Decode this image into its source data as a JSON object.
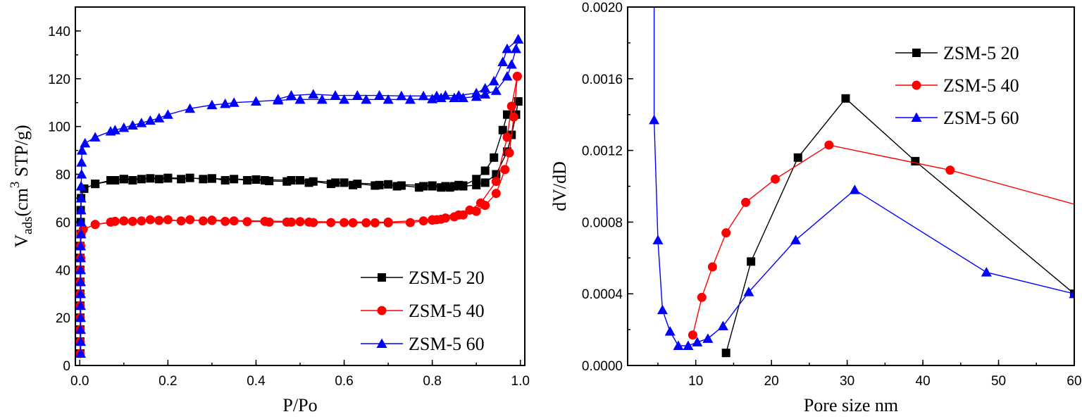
{
  "chart_data": [
    {
      "type": "line",
      "xlabel": "P/Po",
      "ylabel": {
        "main": "V",
        "sub": "ads",
        "pre_sup": "(cm",
        "sup": "3",
        "post_sup": " STP/g)"
      },
      "xlim": [
        -0.01,
        1.01
      ],
      "ylim": [
        0,
        150
      ],
      "xticks": [
        "0.0",
        "0.2",
        "0.4",
        "0.6",
        "0.8",
        "1.0"
      ],
      "yticks": [
        "0",
        "20",
        "40",
        "60",
        "80",
        "100",
        "120",
        "140"
      ],
      "grid": false,
      "legend_position": "bottom-right",
      "series": [
        {
          "name": "ZSM-5 20",
          "color": "#000000",
          "marker": "square",
          "adsorption": [
            [
              0.001,
              5
            ],
            [
              0.001,
              10
            ],
            [
              0.001,
              15
            ],
            [
              0.001,
              20
            ],
            [
              0.001,
              25
            ],
            [
              0.001,
              30
            ],
            [
              0.001,
              35
            ],
            [
              0.001,
              40
            ],
            [
              0.001,
              45
            ],
            [
              0.001,
              50
            ],
            [
              0.002,
              55
            ],
            [
              0.002,
              60
            ],
            [
              0.002,
              65
            ],
            [
              0.003,
              70
            ],
            [
              0.01,
              74
            ],
            [
              0.035,
              76
            ],
            [
              0.07,
              77.5
            ],
            [
              0.08,
              77.5
            ],
            [
              0.1,
              78
            ],
            [
              0.12,
              77.5
            ],
            [
              0.14,
              78
            ],
            [
              0.16,
              78.3
            ],
            [
              0.18,
              78
            ],
            [
              0.2,
              78.3
            ],
            [
              0.23,
              78
            ],
            [
              0.25,
              78.5
            ],
            [
              0.28,
              78
            ],
            [
              0.3,
              78.3
            ],
            [
              0.33,
              77.5
            ],
            [
              0.35,
              78
            ],
            [
              0.38,
              77.5
            ],
            [
              0.42,
              77.5
            ],
            [
              0.43,
              77.2
            ],
            [
              0.47,
              77
            ],
            [
              0.48,
              77.5
            ],
            [
              0.52,
              76.5
            ],
            [
              0.53,
              77
            ],
            [
              0.57,
              76
            ],
            [
              0.58,
              76.5
            ],
            [
              0.62,
              75.5
            ],
            [
              0.63,
              76
            ],
            [
              0.67,
              75.3
            ],
            [
              0.68,
              75.5
            ],
            [
              0.72,
              75
            ],
            [
              0.73,
              75.3
            ],
            [
              0.77,
              74.5
            ],
            [
              0.78,
              75
            ],
            [
              0.8,
              75
            ],
            [
              0.82,
              74.5
            ],
            [
              0.83,
              75
            ],
            [
              0.84,
              74.5
            ],
            [
              0.85,
              75
            ],
            [
              0.86,
              75.5
            ],
            [
              0.87,
              75
            ],
            [
              0.9,
              75.5
            ],
            [
              0.92,
              76.5
            ],
            [
              0.945,
              80
            ],
            [
              0.97,
              89.5
            ],
            [
              0.98,
              96.5
            ],
            [
              0.99,
              105
            ],
            [
              0.995,
              110.5
            ]
          ],
          "desorption": [
            [
              0.995,
              110.5
            ],
            [
              0.97,
              105
            ],
            [
              0.96,
              98.5
            ],
            [
              0.94,
              87
            ],
            [
              0.92,
              81.5
            ],
            [
              0.9,
              78
            ],
            [
              0.87,
              75.3
            ],
            [
              0.8,
              75.3
            ],
            [
              0.7,
              75.8
            ],
            [
              0.6,
              76.5
            ],
            [
              0.5,
              77.5
            ],
            [
              0.4,
              77.8
            ],
            [
              0.3,
              78.2
            ],
            [
              0.2,
              78.5
            ],
            [
              0.1,
              78
            ],
            [
              0.035,
              76
            ]
          ]
        },
        {
          "name": "ZSM-5 40",
          "color": "#ff0000",
          "marker": "circle",
          "adsorption": [
            [
              0.001,
              5
            ],
            [
              0.001,
              10
            ],
            [
              0.001,
              15
            ],
            [
              0.001,
              20
            ],
            [
              0.001,
              25
            ],
            [
              0.001,
              30
            ],
            [
              0.001,
              35
            ],
            [
              0.001,
              40
            ],
            [
              0.002,
              45
            ],
            [
              0.002,
              50
            ],
            [
              0.003,
              55
            ],
            [
              0.008,
              57
            ],
            [
              0.035,
              59
            ],
            [
              0.07,
              60
            ],
            [
              0.08,
              60.3
            ],
            [
              0.1,
              60.5
            ],
            [
              0.12,
              60.3
            ],
            [
              0.14,
              60.5
            ],
            [
              0.16,
              61
            ],
            [
              0.18,
              60.7
            ],
            [
              0.2,
              61
            ],
            [
              0.23,
              60.5
            ],
            [
              0.25,
              61
            ],
            [
              0.28,
              60.5
            ],
            [
              0.3,
              60.7
            ],
            [
              0.33,
              60.3
            ],
            [
              0.35,
              60.5
            ],
            [
              0.38,
              60.2
            ],
            [
              0.42,
              60.3
            ],
            [
              0.43,
              60
            ],
            [
              0.47,
              60
            ],
            [
              0.48,
              60
            ],
            [
              0.52,
              60
            ],
            [
              0.53,
              59.8
            ],
            [
              0.57,
              59.8
            ],
            [
              0.6,
              59.8
            ],
            [
              0.62,
              59.7
            ],
            [
              0.65,
              59.7
            ],
            [
              0.67,
              59.7
            ],
            [
              0.7,
              59.7
            ],
            [
              0.75,
              59.8
            ],
            [
              0.78,
              60.5
            ],
            [
              0.8,
              60.8
            ],
            [
              0.81,
              61
            ],
            [
              0.82,
              61.2
            ],
            [
              0.83,
              61.7
            ],
            [
              0.85,
              62.2
            ],
            [
              0.86,
              63
            ],
            [
              0.87,
              63
            ],
            [
              0.9,
              64.5
            ],
            [
              0.92,
              67
            ],
            [
              0.945,
              72
            ],
            [
              0.965,
              82
            ],
            [
              0.975,
              89
            ],
            [
              0.985,
              104
            ],
            [
              0.993,
              121
            ]
          ],
          "desorption": [
            [
              0.993,
              121
            ],
            [
              0.98,
              108.5
            ],
            [
              0.97,
              95.5
            ],
            [
              0.945,
              77
            ],
            [
              0.91,
              68
            ],
            [
              0.885,
              65
            ],
            [
              0.8,
              61
            ],
            [
              0.7,
              60
            ],
            [
              0.5,
              60.2
            ],
            [
              0.3,
              60.8
            ],
            [
              0.1,
              60.5
            ],
            [
              0.035,
              59
            ]
          ]
        },
        {
          "name": "ZSM-5 60",
          "color": "#0000ff",
          "marker": "triangle",
          "adsorption": [
            [
              0.002,
              5
            ],
            [
              0.002,
              10
            ],
            [
              0.002,
              15
            ],
            [
              0.002,
              20
            ],
            [
              0.002,
              25
            ],
            [
              0.002,
              30
            ],
            [
              0.002,
              35
            ],
            [
              0.002,
              40
            ],
            [
              0.002,
              45
            ],
            [
              0.002,
              50
            ],
            [
              0.003,
              55
            ],
            [
              0.003,
              60
            ],
            [
              0.003,
              65
            ],
            [
              0.003,
              70
            ],
            [
              0.003,
              75
            ],
            [
              0.004,
              80
            ],
            [
              0.004,
              85
            ],
            [
              0.005,
              90
            ],
            [
              0.012,
              93
            ],
            [
              0.035,
              95.5
            ],
            [
              0.07,
              98
            ],
            [
              0.08,
              98.5
            ],
            [
              0.1,
              99.5
            ],
            [
              0.12,
              100.5
            ],
            [
              0.14,
              101.5
            ],
            [
              0.16,
              102.5
            ],
            [
              0.18,
              103.5
            ],
            [
              0.2,
              105
            ],
            [
              0.25,
              107.5
            ],
            [
              0.3,
              109
            ],
            [
              0.33,
              109.5
            ],
            [
              0.35,
              110
            ],
            [
              0.4,
              110.5
            ],
            [
              0.45,
              111
            ],
            [
              0.5,
              111.3
            ],
            [
              0.55,
              111.3
            ],
            [
              0.6,
              111.3
            ],
            [
              0.65,
              111.3
            ],
            [
              0.7,
              111.3
            ],
            [
              0.75,
              111.3
            ],
            [
              0.8,
              111.5
            ],
            [
              0.82,
              112
            ],
            [
              0.85,
              112
            ],
            [
              0.87,
              112
            ],
            [
              0.9,
              112.5
            ],
            [
              0.92,
              113.5
            ],
            [
              0.945,
              115
            ],
            [
              0.97,
              121
            ],
            [
              0.98,
              126
            ],
            [
              0.99,
              132.5
            ],
            [
              0.995,
              136.5
            ]
          ],
          "desorption": [
            [
              0.995,
              136.5
            ],
            [
              0.97,
              132.5
            ],
            [
              0.96,
              127
            ],
            [
              0.94,
              119
            ],
            [
              0.92,
              116
            ],
            [
              0.9,
              114
            ],
            [
              0.86,
              113
            ],
            [
              0.83,
              113
            ],
            [
              0.81,
              112.8
            ],
            [
              0.78,
              112.8
            ],
            [
              0.73,
              112.8
            ],
            [
              0.68,
              113
            ],
            [
              0.63,
              113
            ],
            [
              0.58,
              113
            ],
            [
              0.53,
              113.5
            ],
            [
              0.48,
              113
            ],
            [
              0.45,
              111.5
            ]
          ]
        }
      ]
    },
    {
      "type": "line",
      "xlabel": "Pore size nm",
      "ylabel": "dV/dD",
      "xlim": [
        1,
        60
      ],
      "ylim": [
        0,
        0.002
      ],
      "xticks": [
        "10",
        "20",
        "30",
        "40",
        "50",
        "60"
      ],
      "yticks": [
        "0.0000",
        "0.0004",
        "0.0008",
        "0.0012",
        "0.0016",
        "0.0020"
      ],
      "grid": false,
      "legend_position": "top-right",
      "series": [
        {
          "name": "ZSM-5 20",
          "color": "#000000",
          "marker": "square",
          "points": [
            [
              14,
              7e-05
            ],
            [
              17.3,
              0.00058
            ],
            [
              23.5,
              0.00116
            ],
            [
              29.8,
              0.00149
            ],
            [
              39,
              0.00114
            ],
            [
              60,
              0.0004
            ]
          ]
        },
        {
          "name": "ZSM-5 40",
          "color": "#ff0000",
          "marker": "circle",
          "points": [
            [
              9.6,
              0.00017
            ],
            [
              10.8,
              0.00038
            ],
            [
              12.2,
              0.00055
            ],
            [
              14,
              0.00074
            ],
            [
              16.6,
              0.00091
            ],
            [
              20.5,
              0.00104
            ],
            [
              27.6,
              0.00123
            ],
            [
              43.6,
              0.00109
            ]
          ],
          "line_continues_to": [
            60,
            0.0009
          ]
        },
        {
          "name": "ZSM-5 60",
          "color": "#0000ff",
          "marker": "triangle",
          "line_starts_from": [
            4.5,
            0.0021
          ],
          "points": [
            [
              4.5,
              0.00137
            ],
            [
              5,
              0.0007
            ],
            [
              5.6,
              0.00031
            ],
            [
              6.6,
              0.00019
            ],
            [
              7.7,
              0.00011
            ],
            [
              9,
              0.00011
            ],
            [
              10.2,
              0.00013
            ],
            [
              11.6,
              0.00015
            ],
            [
              13.6,
              0.00022
            ],
            [
              17,
              0.00041
            ],
            [
              23.2,
              0.0007
            ],
            [
              31,
              0.00098
            ],
            [
              48.4,
              0.00052
            ],
            [
              60,
              0.0004
            ]
          ]
        }
      ]
    }
  ]
}
